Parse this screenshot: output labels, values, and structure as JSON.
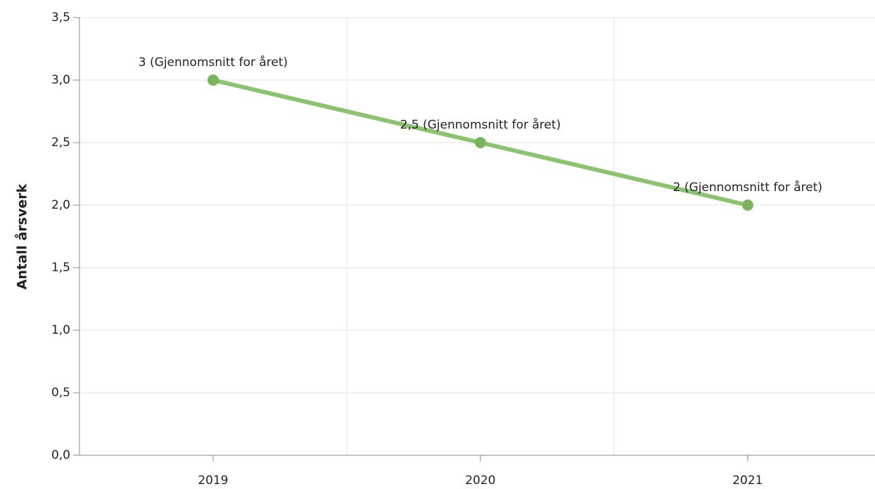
{
  "chart_data": {
    "type": "line",
    "y_label": "Antall årsverk",
    "categories": [
      "2019",
      "2020",
      "2021"
    ],
    "series": [
      {
        "name": "Gjennomsnitt for året",
        "color": "#8cc36f",
        "values": [
          3,
          2.5,
          2
        ],
        "value_labels": [
          "3 (Gjennomsnitt for året)",
          "2,5 (Gjennomsnitt for året)",
          "2 (Gjennomsnitt for året)"
        ]
      }
    ],
    "ylim": [
      0,
      3.5
    ],
    "yticks": [
      {
        "value": 0,
        "label": "0,0"
      },
      {
        "value": 0.5,
        "label": "0,5"
      },
      {
        "value": 1,
        "label": "1,0"
      },
      {
        "value": 1.5,
        "label": "1,5"
      },
      {
        "value": 2,
        "label": "2,0"
      },
      {
        "value": 2.5,
        "label": "2,5"
      },
      {
        "value": 3,
        "label": "3,0"
      },
      {
        "value": 3.5,
        "label": "3,5"
      }
    ],
    "grid": true
  }
}
